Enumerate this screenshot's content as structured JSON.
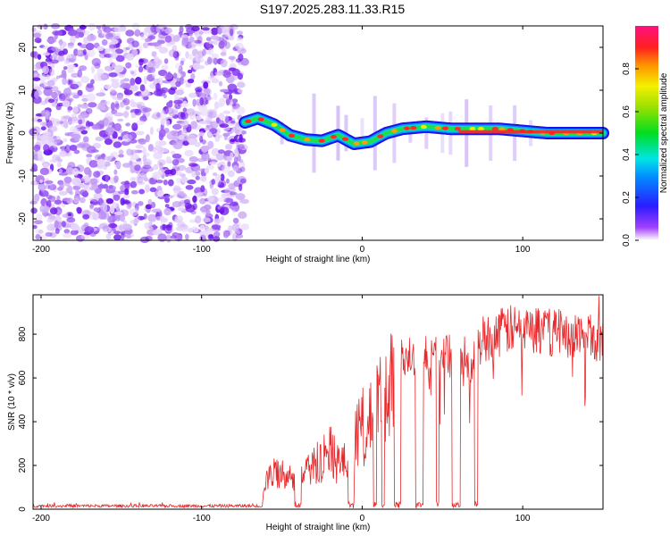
{
  "title": "S197.2025.283.11.33.R15",
  "chart_data": [
    {
      "type": "heatmap",
      "name": "spectrogram",
      "xlabel": "Height of straight line (km)",
      "ylabel": "Frequency (Hz)",
      "xlim": [
        -205,
        150
      ],
      "ylim": [
        -25,
        25
      ],
      "xticks": [
        -200,
        -100,
        0,
        100
      ],
      "yticks": [
        -20,
        -10,
        0,
        10,
        20
      ],
      "noise_region_x": [
        -205,
        -73
      ],
      "ridge": [
        {
          "x": -73,
          "f": 2.5
        },
        {
          "x": -65,
          "f": 3.5
        },
        {
          "x": -55,
          "f": 2.0
        },
        {
          "x": -45,
          "f": -0.5
        },
        {
          "x": -35,
          "f": -1.5
        },
        {
          "x": -25,
          "f": -1.8
        },
        {
          "x": -15,
          "f": -0.5
        },
        {
          "x": -5,
          "f": -2.5
        },
        {
          "x": 5,
          "f": -2.0
        },
        {
          "x": 15,
          "f": 0.0
        },
        {
          "x": 25,
          "f": 1.0
        },
        {
          "x": 40,
          "f": 1.5
        },
        {
          "x": 55,
          "f": 1.0
        },
        {
          "x": 70,
          "f": 1.0
        },
        {
          "x": 85,
          "f": 1.0
        },
        {
          "x": 100,
          "f": 0.5
        },
        {
          "x": 115,
          "f": 0.0
        },
        {
          "x": 150,
          "f": 0.0
        }
      ],
      "colorbar": {
        "label": "Normalized spectral amplitude",
        "ticks": [
          "0.0",
          "0.2",
          "0.4",
          "0.6",
          "0.8"
        ],
        "range": [
          0,
          1
        ]
      }
    },
    {
      "type": "line",
      "name": "snr",
      "xlabel": "Height of straight line (km)",
      "ylabel": "SNR (10 * v/v)",
      "xlim": [
        -205,
        150
      ],
      "ylim": [
        0,
        980
      ],
      "xticks": [
        -200,
        -100,
        0,
        100
      ],
      "yticks": [
        0,
        200,
        400,
        600,
        800
      ],
      "color": "#e8282b",
      "envelope": [
        {
          "x": -205,
          "y": 12
        },
        {
          "x": -65,
          "y": 12
        },
        {
          "x": -58,
          "y": 150
        },
        {
          "x": -50,
          "y": 180
        },
        {
          "x": -40,
          "y": 120
        },
        {
          "x": -30,
          "y": 200
        },
        {
          "x": -20,
          "y": 280
        },
        {
          "x": -12,
          "y": 200
        },
        {
          "x": -5,
          "y": 330
        },
        {
          "x": 5,
          "y": 430
        },
        {
          "x": 15,
          "y": 520
        },
        {
          "x": 25,
          "y": 700
        },
        {
          "x": 40,
          "y": 700
        },
        {
          "x": 55,
          "y": 700
        },
        {
          "x": 65,
          "y": 620
        },
        {
          "x": 75,
          "y": 780
        },
        {
          "x": 90,
          "y": 820
        },
        {
          "x": 100,
          "y": 820
        },
        {
          "x": 120,
          "y": 810
        },
        {
          "x": 150,
          "y": 780
        }
      ],
      "dropouts": [
        {
          "x0": -42,
          "x1": -38
        },
        {
          "x0": -9,
          "x1": -5
        },
        {
          "x0": 7,
          "x1": 9
        },
        {
          "x0": 12,
          "x1": 14
        },
        {
          "x0": 20,
          "x1": 24
        },
        {
          "x0": 33,
          "x1": 38
        },
        {
          "x0": 46,
          "x1": 48
        },
        {
          "x0": 56,
          "x1": 61
        },
        {
          "x0": 70,
          "x1": 72
        }
      ]
    }
  ]
}
